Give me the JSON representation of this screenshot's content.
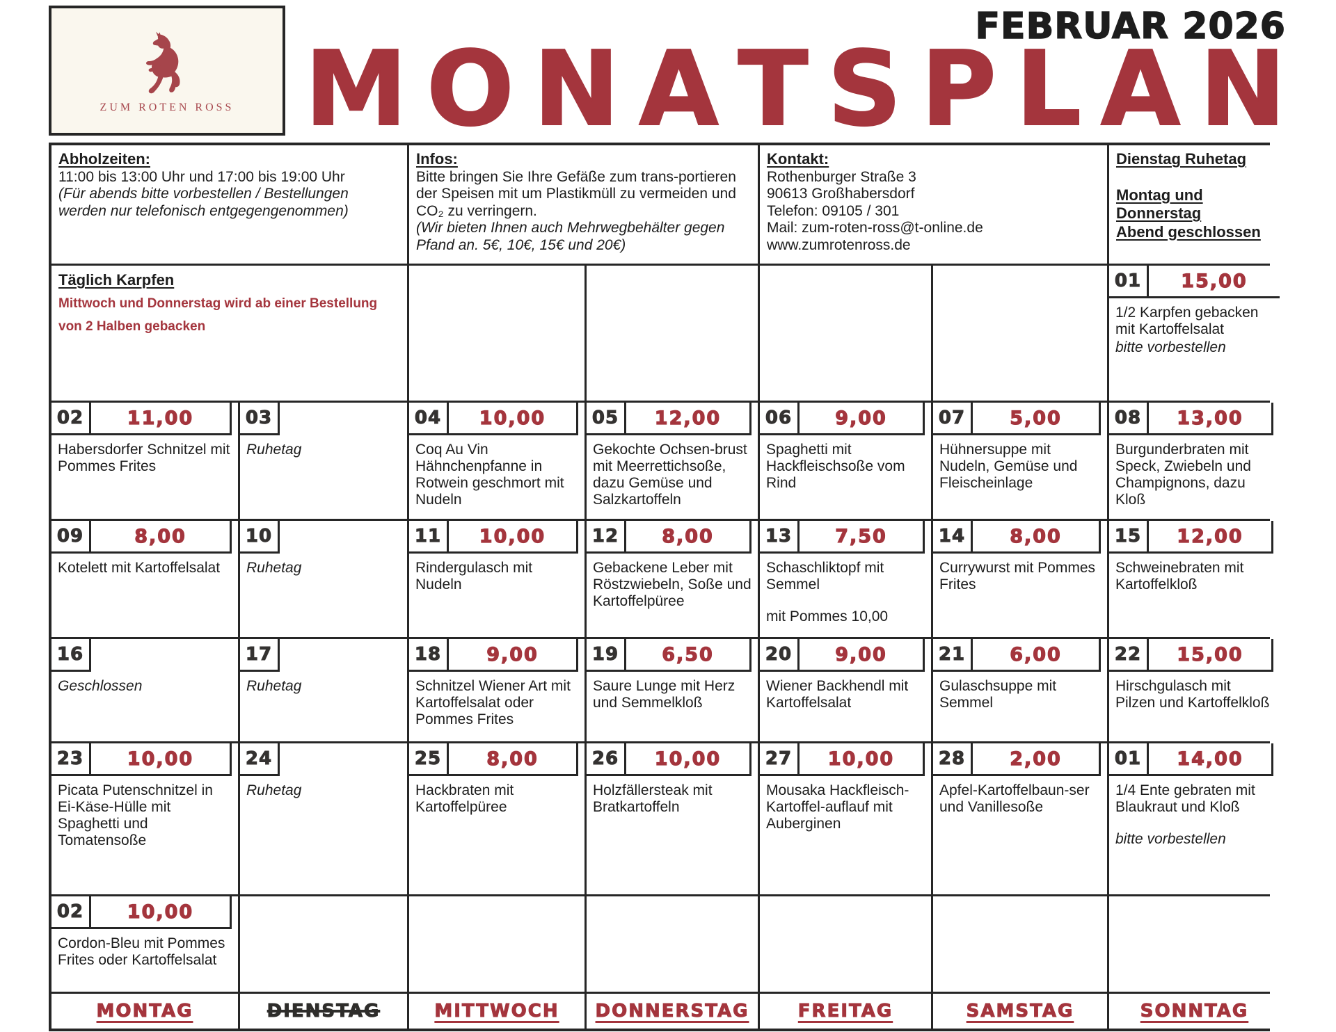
{
  "colors": {
    "accent": "#A4353D",
    "ink": "#262626",
    "logo_bg": "#FAF7EE"
  },
  "header": {
    "month": "FEBRUAR 2026",
    "title": "MONATSPLAN",
    "logo_text": "ZUM ROTEN ROSS"
  },
  "info": {
    "pickup": {
      "heading": "Abholzeiten:",
      "line": "11:00 bis 13:00 Uhr und 17:00 bis 19:00 Uhr",
      "note": "(Für abends bitte vorbestellen / Bestellungen werden nur telefonisch entgegengenommen)"
    },
    "infos": {
      "heading": "Infos:",
      "text": "Bitte bringen Sie Ihre Gefäße zum trans-portieren der Speisen mit um Plastikmüll zu vermeiden und CO₂ zu verringern.",
      "note": "(Wir bieten Ihnen auch Mehrwegbehälter gegen Pfand an. 5€, 10€, 15€ und 20€)"
    },
    "contact": {
      "heading": "Kontakt:",
      "lines": "Rothenburger Straße 3\n90613 Großhabersdorf\nTelefon: 09105 / 301\nMail: zum-roten-ross@t-online.de\nwww.zumrotenross.de"
    },
    "closed": {
      "line1": "Dienstag Ruhetag",
      "line2": "Montag und\nDonnerstag\nAbend geschlossen"
    }
  },
  "daily": {
    "heading": "Täglich Karpfen",
    "note": "Mittwoch und Donnerstag wird ab einer Bestellung\nvon 2 Halben gebacken"
  },
  "karpfen_day": {
    "num": "01",
    "price": "15,00",
    "desc": "1/2 Karpfen gebacken mit Kartoffelsalat",
    "note": "bitte vorbestellen"
  },
  "weeks": [
    [
      {
        "num": "02",
        "price": "11,00",
        "desc": "Habersdorfer Schnitzel mit Pommes Frites"
      },
      {
        "num": "03",
        "price": null,
        "desc": "Ruhetag",
        "desc_italic": true
      },
      {
        "num": "04",
        "price": "10,00",
        "desc": "Coq Au Vin Hähnchenpfanne in Rotwein geschmort mit Nudeln"
      },
      {
        "num": "05",
        "price": "12,00",
        "desc": "Gekochte Ochsen-brust mit Meerrettichsoße, dazu Gemüse und Salzkartoffeln"
      },
      {
        "num": "06",
        "price": "9,00",
        "desc": "Spaghetti mit Hackfleischsoße vom Rind"
      },
      {
        "num": "07",
        "price": "5,00",
        "desc": "Hühnersuppe mit Nudeln, Gemüse und Fleischeinlage"
      },
      {
        "num": "08",
        "price": "13,00",
        "desc": "Burgunderbraten mit Speck, Zwiebeln und Champignons, dazu Kloß"
      }
    ],
    [
      {
        "num": "09",
        "price": "8,00",
        "desc": "Kotelett mit Kartoffelsalat"
      },
      {
        "num": "10",
        "price": null,
        "desc": "Ruhetag",
        "desc_italic": true
      },
      {
        "num": "11",
        "price": "10,00",
        "desc": "Rindergulasch mit Nudeln"
      },
      {
        "num": "12",
        "price": "8,00",
        "desc": "Gebackene Leber mit Röstzwiebeln, Soße und Kartoffelpüree"
      },
      {
        "num": "13",
        "price": "7,50",
        "desc": "Schaschliktopf mit Semmel",
        "note": "mit Pommes 10,00"
      },
      {
        "num": "14",
        "price": "8,00",
        "desc": "Currywurst mit Pommes Frites"
      },
      {
        "num": "15",
        "price": "12,00",
        "desc": "Schweinebraten mit Kartoffelkloß"
      }
    ],
    [
      {
        "num": "16",
        "price": null,
        "desc": "Geschlossen",
        "desc_italic": true
      },
      {
        "num": "17",
        "price": null,
        "desc": "Ruhetag",
        "desc_italic": true
      },
      {
        "num": "18",
        "price": "9,00",
        "desc": "Schnitzel Wiener Art mit Kartoffelsalat oder Pommes Frites"
      },
      {
        "num": "19",
        "price": "6,50",
        "desc": "Saure Lunge mit Herz und Semmelkloß"
      },
      {
        "num": "20",
        "price": "9,00",
        "desc": "Wiener Backhendl mit Kartoffelsalat"
      },
      {
        "num": "21",
        "price": "6,00",
        "desc": "Gulaschsuppe mit Semmel"
      },
      {
        "num": "22",
        "price": "15,00",
        "desc": "Hirschgulasch mit Pilzen und Kartoffelkloß"
      }
    ],
    [
      {
        "num": "23",
        "price": "10,00",
        "desc": "Picata Putenschnitzel in Ei-Käse-Hülle mit Spaghetti und Tomatensoße"
      },
      {
        "num": "24",
        "price": null,
        "desc": "Ruhetag",
        "desc_italic": true
      },
      {
        "num": "25",
        "price": "8,00",
        "desc": "Hackbraten mit Kartoffelpüree"
      },
      {
        "num": "26",
        "price": "10,00",
        "desc": "Holzfällersteak mit Bratkartoffeln"
      },
      {
        "num": "27",
        "price": "10,00",
        "desc": "Mousaka Hackfleisch-Kartoffel-auflauf mit Auberginen"
      },
      {
        "num": "28",
        "price": "2,00",
        "desc": "Apfel-Kartoffelbaun-ser und Vanillesoße"
      },
      {
        "num": "01",
        "price": "14,00",
        "desc": "1/4 Ente gebraten mit Blaukraut und Kloß",
        "note": "bitte vorbestellen",
        "note_italic": true
      }
    ]
  ],
  "extra_day": {
    "num": "02",
    "price": "10,00",
    "desc": "Cordon-Bleu mit Pommes Frites oder Kartoffelsalat"
  },
  "footer": {
    "days": [
      {
        "label": "MONTAG",
        "closed": false
      },
      {
        "label": "DIENSTAG",
        "closed": true
      },
      {
        "label": "MITTWOCH",
        "closed": false
      },
      {
        "label": "DONNERSTAG",
        "closed": false
      },
      {
        "label": "FREITAG",
        "closed": false
      },
      {
        "label": "SAMSTAG",
        "closed": false
      },
      {
        "label": "SONNTAG",
        "closed": false
      }
    ]
  }
}
